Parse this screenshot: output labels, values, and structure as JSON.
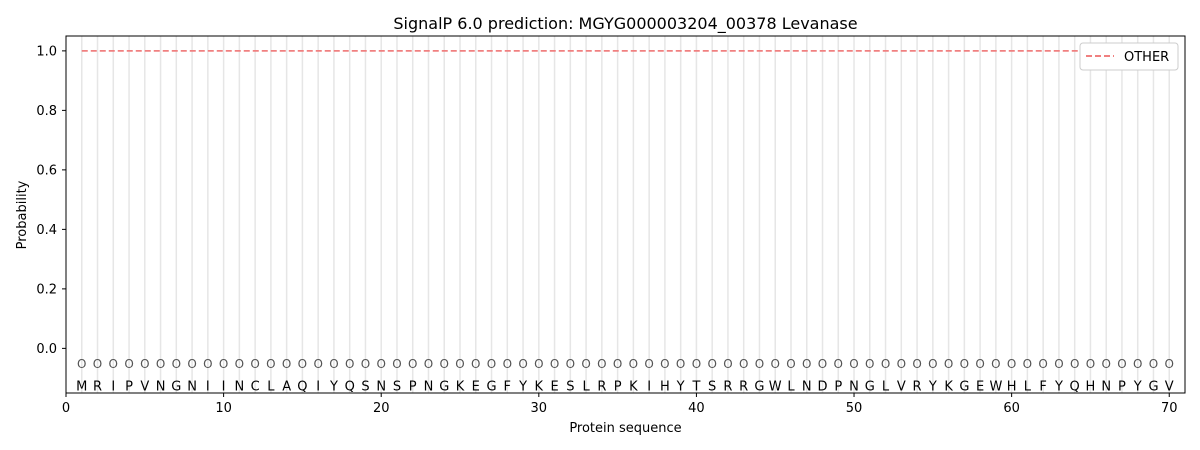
{
  "chart_data": {
    "type": "line",
    "title": "SignalP 6.0 prediction: MGYG000003204_00378 Levanase",
    "xlabel": "Protein sequence",
    "ylabel": "Probability",
    "xlim": [
      0,
      71
    ],
    "ylim": [
      -0.15,
      1.05
    ],
    "x_ticks": [
      0,
      10,
      20,
      30,
      40,
      50,
      60,
      70
    ],
    "y_ticks": [
      0.0,
      0.2,
      0.4,
      0.6,
      0.8,
      1.0
    ],
    "y_tick_labels": [
      "0.0",
      "0.2",
      "0.4",
      "0.6",
      "0.8",
      "1.0"
    ],
    "grid": "vertical lines at each residue",
    "legend_position": "top-right",
    "series": [
      {
        "name": "OTHER",
        "color": "#f08080",
        "style": "dashed",
        "x_start": 1,
        "x_end": 70,
        "value": 1.0
      }
    ],
    "sequence": [
      "M",
      "R",
      "I",
      "P",
      "V",
      "N",
      "G",
      "N",
      "I",
      "I",
      "N",
      "C",
      "L",
      "A",
      "Q",
      "I",
      "Y",
      "Q",
      "S",
      "N",
      "S",
      "P",
      "N",
      "G",
      "K",
      "E",
      "G",
      "F",
      "Y",
      "K",
      "E",
      "S",
      "L",
      "R",
      "P",
      "K",
      "I",
      "H",
      "Y",
      "T",
      "S",
      "R",
      "R",
      "G",
      "W",
      "L",
      "N",
      "D",
      "P",
      "N",
      "G",
      "L",
      "V",
      "R",
      "Y",
      "K",
      "G",
      "E",
      "W",
      "H",
      "L",
      "F",
      "Y",
      "Q",
      "H",
      "N",
      "P",
      "Y",
      "G",
      "V"
    ],
    "region_label": "O"
  }
}
